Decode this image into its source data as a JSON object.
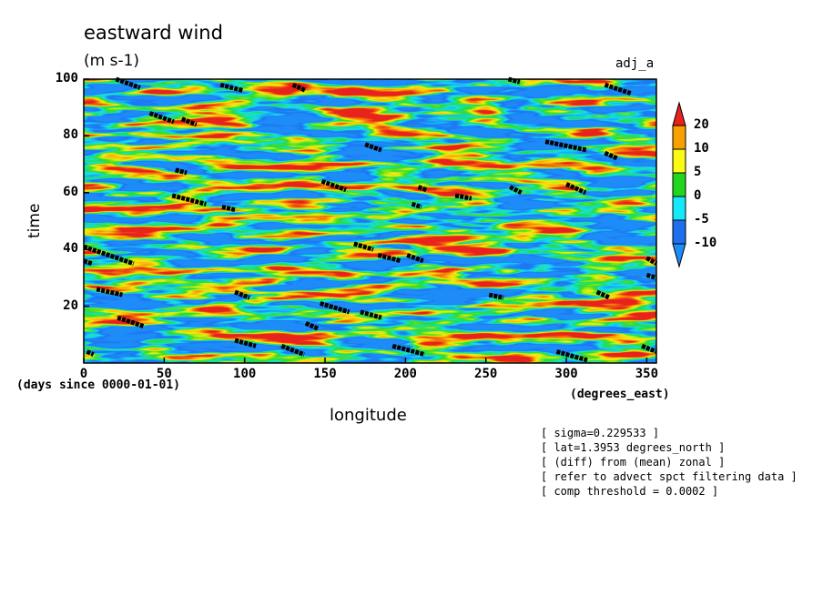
{
  "chart_data": {
    "type": "heatmap",
    "title": "eastward wind",
    "units": "(m s-1)",
    "tag": "adj_a",
    "xlabel": "longitude",
    "ylabel": "time",
    "x_units": "(degrees_east)",
    "y_units": "(days since 0000-01-01)",
    "xlim": [
      0,
      356
    ],
    "ylim": [
      0,
      100
    ],
    "x_ticks": [
      0,
      50,
      100,
      150,
      200,
      250,
      300,
      350
    ],
    "y_ticks": [
      20,
      40,
      60,
      80,
      100
    ],
    "colorbar": {
      "levels": [
        "20",
        "10",
        "5",
        "0",
        "-5",
        "-10"
      ],
      "colors": [
        "#e8201e",
        "#f7a000",
        "#fafa14",
        "#22d61e",
        "#14e8fa",
        "#1e6ef0",
        "#1e8cf8"
      ],
      "extend": "both"
    },
    "notes": [
      "[ sigma=0.229533 ]",
      "[ lat=1.3953 degrees_north ]",
      "[ (diff) from (mean) zonal ]",
      "[ refer to advect spct filtering data ]",
      "[ comp threshold = 0.0002 ]"
    ]
  }
}
